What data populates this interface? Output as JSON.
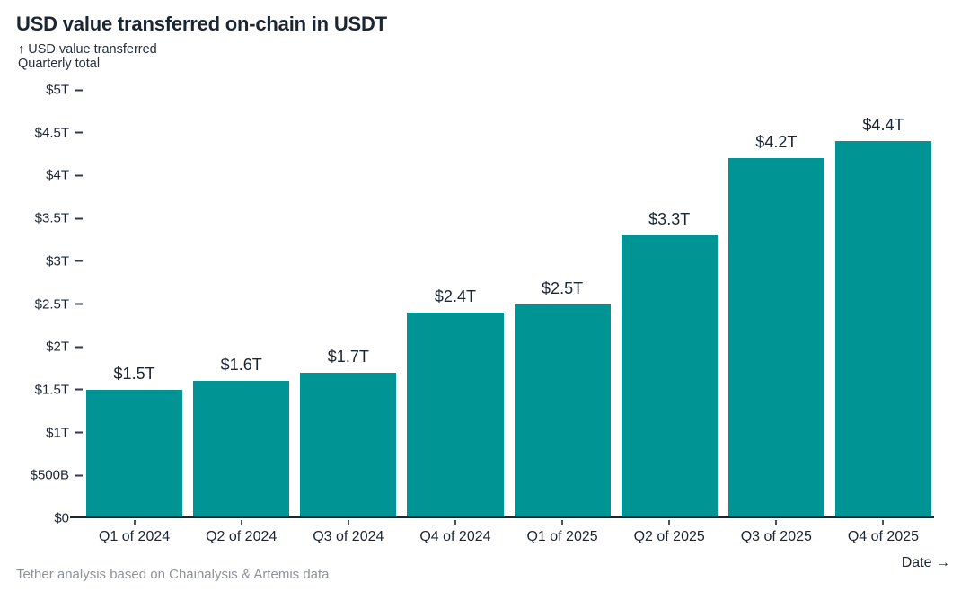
{
  "page": {
    "title": "USD value transferred on-chain in USDT",
    "y_axis_label_line1": "↑ USD value transferred",
    "y_axis_label_line2": "Quarterly total",
    "x_axis_label": "Date →",
    "source_note": "Tether analysis based on Chainalysis & Artemis data"
  },
  "colors": {
    "bar": "#009494",
    "text_dark": "#1b2634",
    "text_muted": "#8d929a"
  },
  "chart_data": {
    "type": "bar",
    "title": "USD value transferred on-chain in USDT",
    "xlabel": "Date",
    "ylabel": "USD value transferred, quarterly total",
    "unit": "trillions of USD",
    "categories": [
      "Q1 of 2024",
      "Q2 of 2024",
      "Q3 of 2024",
      "Q4 of 2024",
      "Q1 of 2025",
      "Q2 of 2025",
      "Q3 of 2025",
      "Q4 of 2025"
    ],
    "values": [
      1.5,
      1.6,
      1.7,
      2.4,
      2.5,
      3.3,
      4.2,
      4.4
    ],
    "bar_value_labels": [
      "$1.5T",
      "$1.6T",
      "$1.7T",
      "$2.4T",
      "$2.5T",
      "$3.3T",
      "$4.2T",
      "$4.4T"
    ],
    "ylim": [
      0,
      5
    ],
    "y_ticks": [
      {
        "label": "$0",
        "value": 0
      },
      {
        "label": "$500B",
        "value": 0.5
      },
      {
        "label": "$1T",
        "value": 1
      },
      {
        "label": "$1.5T",
        "value": 1.5
      },
      {
        "label": "$2T",
        "value": 2
      },
      {
        "label": "$2.5T",
        "value": 2.5
      },
      {
        "label": "$3T",
        "value": 3
      },
      {
        "label": "$3.5T",
        "value": 3.5
      },
      {
        "label": "$4T",
        "value": 4
      },
      {
        "label": "$4.5T",
        "value": 4.5
      },
      {
        "label": "$5T",
        "value": 5
      }
    ],
    "grid": false,
    "legend": false,
    "bar_color": "#009494"
  }
}
